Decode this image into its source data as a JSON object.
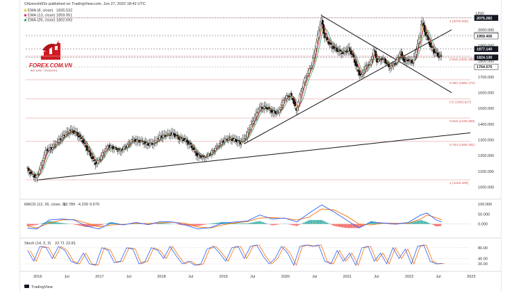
{
  "header": {
    "published_line": "Citizenshi93v published on TradingView.com, Jun 27, 2022 18:42 UTC",
    "indicators": [
      {
        "label": "EMA (8, close)",
        "value": "1835.532"
      },
      {
        "label": "EMA (13, close)",
        "value": "1859.951"
      },
      {
        "label": "EMA (26, close)",
        "value": "1802.692"
      }
    ]
  },
  "currency": "USD",
  "logo": {
    "name": "FOREX.COM.VN",
    "tagline": "WE ARE TRADERS"
  },
  "watermark": "TradingView",
  "colors": {
    "candle": "#111111",
    "ema_fast": "#f2c100",
    "ema_mid": "#e0245e",
    "ema_slow": "#3a9d5d",
    "fib_line": "#e8a0a0",
    "fib_text": "#d15454",
    "trendline": "#111111",
    "macd_line": "#2962ff",
    "signal_line": "#ff6d00",
    "hist_pos": "#26a69a",
    "hist_neg": "#ef5350",
    "stoch_k": "#2962ff",
    "stoch_d": "#ff6d00"
  },
  "chart_data": {
    "type": "candlestick",
    "ylabel": "USD",
    "ylim": [
      945,
      2145
    ],
    "y_ticks": [
      1000,
      1100,
      1200,
      1300,
      1400,
      1500,
      1600,
      1700,
      1800,
      1900,
      2000
    ],
    "y_tick_labels": [
      "1000.000",
      "1100.000",
      "1200.000",
      "1300.000",
      "1400.000",
      "1500.000",
      "1600.000",
      "1700.000",
      "1800.000",
      "1900.000",
      "2000.000"
    ],
    "x_labels": [
      {
        "t": 0,
        "label": "2016"
      },
      {
        "t": 0.5,
        "label": "Jul"
      },
      {
        "t": 1,
        "label": "2017"
      },
      {
        "t": 1.5,
        "label": "Jul"
      },
      {
        "t": 2,
        "label": "2018"
      },
      {
        "t": 2.5,
        "label": "Jul"
      },
      {
        "t": 3,
        "label": "2019"
      },
      {
        "t": 3.5,
        "label": "Jul"
      },
      {
        "t": 4,
        "label": "2020"
      },
      {
        "t": 4.5,
        "label": "Jul"
      },
      {
        "t": 5,
        "label": "2021"
      },
      {
        "t": 5.5,
        "label": "Jul"
      },
      {
        "t": 6,
        "label": "2022"
      },
      {
        "t": 6.5,
        "label": "Jul"
      },
      {
        "t": 7,
        "label": "2023"
      }
    ],
    "price_path": [
      [
        -0.15,
        1120
      ],
      [
        -0.08,
        1080
      ],
      [
        0.0,
        1060
      ],
      [
        0.08,
        1140
      ],
      [
        0.15,
        1230
      ],
      [
        0.25,
        1250
      ],
      [
        0.35,
        1290
      ],
      [
        0.45,
        1330
      ],
      [
        0.55,
        1360
      ],
      [
        0.65,
        1340
      ],
      [
        0.75,
        1290
      ],
      [
        0.85,
        1220
      ],
      [
        0.95,
        1150
      ],
      [
        1.0,
        1160
      ],
      [
        1.08,
        1220
      ],
      [
        1.16,
        1260
      ],
      [
        1.25,
        1250
      ],
      [
        1.35,
        1230
      ],
      [
        1.45,
        1260
      ],
      [
        1.55,
        1300
      ],
      [
        1.7,
        1290
      ],
      [
        1.8,
        1270
      ],
      [
        1.9,
        1280
      ],
      [
        2.0,
        1320
      ],
      [
        2.1,
        1330
      ],
      [
        2.2,
        1340
      ],
      [
        2.3,
        1310
      ],
      [
        2.4,
        1300
      ],
      [
        2.5,
        1260
      ],
      [
        2.6,
        1200
      ],
      [
        2.7,
        1190
      ],
      [
        2.8,
        1210
      ],
      [
        2.9,
        1250
      ],
      [
        3.0,
        1290
      ],
      [
        3.1,
        1310
      ],
      [
        3.2,
        1300
      ],
      [
        3.3,
        1280
      ],
      [
        3.4,
        1330
      ],
      [
        3.5,
        1420
      ],
      [
        3.6,
        1500
      ],
      [
        3.7,
        1510
      ],
      [
        3.8,
        1480
      ],
      [
        3.9,
        1470
      ],
      [
        4.0,
        1560
      ],
      [
        4.1,
        1590
      ],
      [
        4.15,
        1550
      ],
      [
        4.2,
        1480
      ],
      [
        4.28,
        1620
      ],
      [
        4.35,
        1700
      ],
      [
        4.45,
        1780
      ],
      [
        4.55,
        1970
      ],
      [
        4.6,
        2075
      ],
      [
        4.65,
        1960
      ],
      [
        4.75,
        1900
      ],
      [
        4.85,
        1870
      ],
      [
        4.95,
        1850
      ],
      [
        5.05,
        1880
      ],
      [
        5.12,
        1820
      ],
      [
        5.2,
        1730
      ],
      [
        5.25,
        1700
      ],
      [
        5.3,
        1760
      ],
      [
        5.4,
        1790
      ],
      [
        5.45,
        1880
      ],
      [
        5.5,
        1800
      ],
      [
        5.6,
        1820
      ],
      [
        5.7,
        1760
      ],
      [
        5.8,
        1790
      ],
      [
        5.88,
        1860
      ],
      [
        5.95,
        1790
      ],
      [
        6.0,
        1810
      ],
      [
        6.08,
        1790
      ],
      [
        6.15,
        1900
      ],
      [
        6.2,
        1960
      ],
      [
        6.22,
        2070
      ],
      [
        6.28,
        1980
      ],
      [
        6.33,
        1930
      ],
      [
        6.38,
        1880
      ],
      [
        6.45,
        1850
      ],
      [
        6.5,
        1830
      ],
      [
        6.54,
        1828
      ]
    ],
    "levels": [
      {
        "value": 2075.282,
        "label": "2075.282",
        "style": "dark"
      },
      {
        "value": 1965.572,
        "label": "1965.572",
        "style": "light"
      },
      {
        "value": 1959.406,
        "label": "1959.406",
        "style": "light"
      },
      {
        "value": 1877.14,
        "label": "1877.140",
        "style": "dark"
      },
      {
        "value": 1824.13,
        "label": "1824.130",
        "style": "dark"
      },
      {
        "value": 1764.57,
        "label": "1764.570",
        "style": "light"
      }
    ],
    "fib_levels": [
      {
        "value": 2075,
        "label": "1 (2075.282)"
      },
      {
        "value": 1832,
        "label": "0.618 (1832.480)"
      },
      {
        "value": 1682,
        "label": "0.382 (1682.172)"
      },
      {
        "value": 1560,
        "label": "0.5 (1560.827)"
      },
      {
        "value": 1439,
        "label": "0.618 (1439.489)"
      },
      {
        "value": 1290,
        "label": "0.764 (1290.281)"
      },
      {
        "value": 1046,
        "label": "1 (1046.409)"
      }
    ],
    "trendlines": [
      {
        "from": [
          0.0,
          1045
        ],
        "to": [
          7.0,
          1345
        ]
      },
      {
        "from": [
          3.35,
          1275
        ],
        "to": [
          6.7,
          2000
        ]
      },
      {
        "from": [
          4.6,
          2090
        ],
        "to": [
          6.7,
          1600
        ]
      }
    ],
    "macd": {
      "label": "MACD (12, 26, close, 9)",
      "values_text": [
        "13.789",
        "-4.239",
        "9.570"
      ],
      "ylim": [
        -60,
        110
      ],
      "y_ticks": [
        100,
        50,
        0
      ],
      "y_tick_labels": [
        "100.000",
        "50.000",
        "0.000"
      ],
      "macd_path": [
        [
          -0.15,
          -20
        ],
        [
          0.0,
          -25
        ],
        [
          0.2,
          20
        ],
        [
          0.4,
          25
        ],
        [
          0.6,
          20
        ],
        [
          0.8,
          -10
        ],
        [
          1.0,
          -25
        ],
        [
          1.2,
          5
        ],
        [
          1.4,
          -5
        ],
        [
          1.6,
          8
        ],
        [
          1.8,
          -3
        ],
        [
          2.0,
          12
        ],
        [
          2.2,
          10
        ],
        [
          2.4,
          -5
        ],
        [
          2.6,
          -25
        ],
        [
          2.8,
          -18
        ],
        [
          3.0,
          5
        ],
        [
          3.2,
          10
        ],
        [
          3.4,
          15
        ],
        [
          3.6,
          45
        ],
        [
          3.8,
          25
        ],
        [
          4.0,
          30
        ],
        [
          4.2,
          10
        ],
        [
          4.4,
          55
        ],
        [
          4.6,
          95
        ],
        [
          4.8,
          60
        ],
        [
          5.0,
          20
        ],
        [
          5.2,
          -20
        ],
        [
          5.4,
          10
        ],
        [
          5.6,
          5
        ],
        [
          5.8,
          0
        ],
        [
          6.0,
          8
        ],
        [
          6.2,
          45
        ],
        [
          6.3,
          55
        ],
        [
          6.45,
          20
        ],
        [
          6.54,
          10
        ]
      ],
      "signal_path": [
        [
          -0.15,
          -10
        ],
        [
          0.0,
          -20
        ],
        [
          0.2,
          5
        ],
        [
          0.4,
          20
        ],
        [
          0.6,
          22
        ],
        [
          0.8,
          5
        ],
        [
          1.0,
          -15
        ],
        [
          1.2,
          -5
        ],
        [
          1.4,
          -2
        ],
        [
          1.6,
          3
        ],
        [
          1.8,
          2
        ],
        [
          2.0,
          6
        ],
        [
          2.2,
          9
        ],
        [
          2.4,
          3
        ],
        [
          2.6,
          -15
        ],
        [
          2.8,
          -20
        ],
        [
          3.0,
          -5
        ],
        [
          3.2,
          6
        ],
        [
          3.4,
          12
        ],
        [
          3.6,
          30
        ],
        [
          3.8,
          32
        ],
        [
          4.0,
          28
        ],
        [
          4.2,
          20
        ],
        [
          4.4,
          35
        ],
        [
          4.6,
          75
        ],
        [
          4.8,
          70
        ],
        [
          5.0,
          40
        ],
        [
          5.2,
          0
        ],
        [
          5.4,
          -5
        ],
        [
          5.6,
          5
        ],
        [
          5.8,
          3
        ],
        [
          6.0,
          4
        ],
        [
          6.2,
          25
        ],
        [
          6.3,
          45
        ],
        [
          6.45,
          32
        ],
        [
          6.54,
          20
        ]
      ]
    },
    "stoch": {
      "label": "Stoch (14, 3, 3)",
      "values_text": [
        "22.71",
        "22.81"
      ],
      "ylim": [
        0,
        100
      ],
      "y_ticks": [
        80,
        40,
        20
      ],
      "y_tick_labels": [
        "80.00",
        "40.00",
        "20.00"
      ],
      "k_path": [
        [
          -0.15,
          70
        ],
        [
          -0.05,
          30
        ],
        [
          0.05,
          85
        ],
        [
          0.15,
          80
        ],
        [
          0.25,
          40
        ],
        [
          0.35,
          85
        ],
        [
          0.45,
          70
        ],
        [
          0.55,
          30
        ],
        [
          0.65,
          20
        ],
        [
          0.75,
          60
        ],
        [
          0.85,
          20
        ],
        [
          0.95,
          15
        ],
        [
          1.05,
          80
        ],
        [
          1.15,
          70
        ],
        [
          1.25,
          25
        ],
        [
          1.35,
          30
        ],
        [
          1.45,
          80
        ],
        [
          1.55,
          75
        ],
        [
          1.65,
          20
        ],
        [
          1.75,
          30
        ],
        [
          1.85,
          80
        ],
        [
          1.95,
          70
        ],
        [
          2.05,
          40
        ],
        [
          2.15,
          85
        ],
        [
          2.25,
          50
        ],
        [
          2.35,
          20
        ],
        [
          2.45,
          30
        ],
        [
          2.55,
          15
        ],
        [
          2.65,
          20
        ],
        [
          2.75,
          75
        ],
        [
          2.85,
          85
        ],
        [
          2.95,
          60
        ],
        [
          3.05,
          30
        ],
        [
          3.15,
          80
        ],
        [
          3.25,
          85
        ],
        [
          3.35,
          40
        ],
        [
          3.45,
          85
        ],
        [
          3.55,
          90
        ],
        [
          3.65,
          50
        ],
        [
          3.75,
          20
        ],
        [
          3.85,
          40
        ],
        [
          3.95,
          85
        ],
        [
          4.05,
          60
        ],
        [
          4.15,
          15
        ],
        [
          4.25,
          85
        ],
        [
          4.35,
          90
        ],
        [
          4.45,
          85
        ],
        [
          4.55,
          90
        ],
        [
          4.65,
          30
        ],
        [
          4.75,
          20
        ],
        [
          4.85,
          70
        ],
        [
          4.95,
          30
        ],
        [
          5.05,
          60
        ],
        [
          5.15,
          15
        ],
        [
          5.25,
          80
        ],
        [
          5.35,
          85
        ],
        [
          5.45,
          30
        ],
        [
          5.55,
          60
        ],
        [
          5.65,
          20
        ],
        [
          5.75,
          80
        ],
        [
          5.85,
          40
        ],
        [
          5.95,
          75
        ],
        [
          6.05,
          20
        ],
        [
          6.15,
          85
        ],
        [
          6.25,
          90
        ],
        [
          6.35,
          30
        ],
        [
          6.45,
          20
        ],
        [
          6.54,
          22
        ]
      ],
      "d_offset": 0.04
    }
  }
}
